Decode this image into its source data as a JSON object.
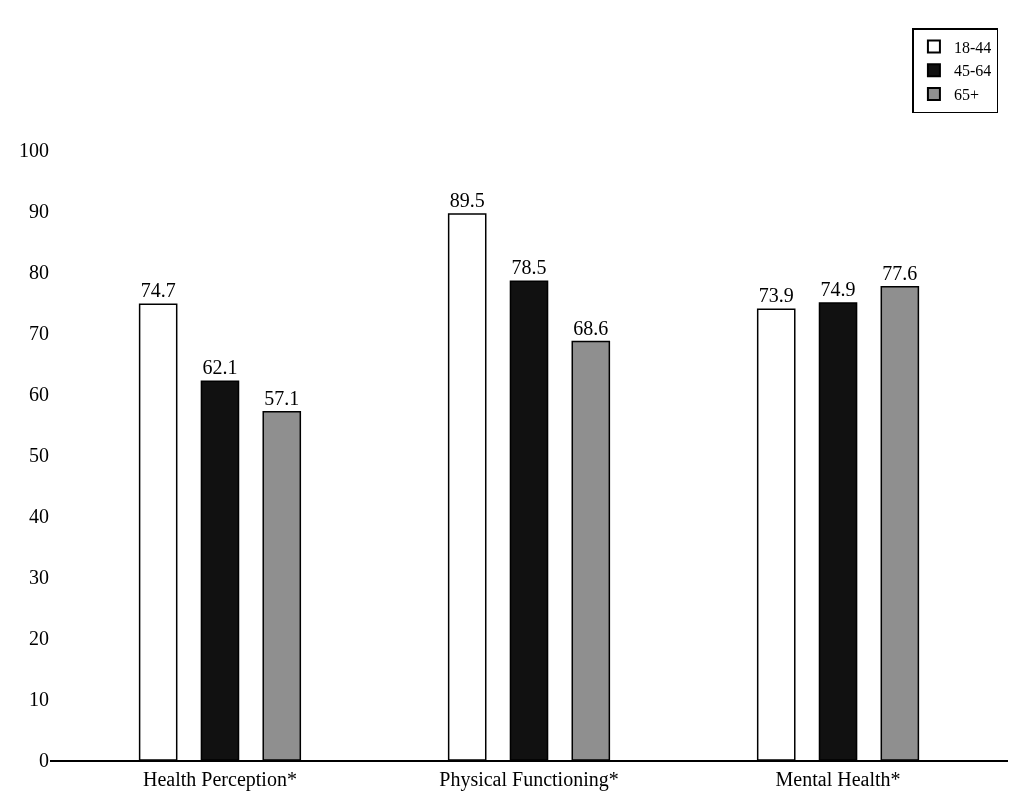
{
  "chart_data": {
    "type": "bar",
    "categories": [
      "Health Perception*",
      "Physical Functioning*",
      "Mental Health*"
    ],
    "series": [
      {
        "name": "18-44",
        "color": "#ffffff",
        "values": [
          74.7,
          89.5,
          73.9
        ]
      },
      {
        "name": "45-64",
        "color": "#111111",
        "values": [
          62.1,
          78.5,
          74.9
        ]
      },
      {
        "name": "65+",
        "color": "#8f8f8f",
        "values": [
          57.1,
          68.6,
          77.6
        ]
      }
    ],
    "ylim": [
      0,
      100
    ],
    "yticks": [
      0,
      10,
      20,
      30,
      40,
      50,
      60,
      70,
      80,
      90,
      100
    ],
    "data_labels": true,
    "legend": "top right"
  }
}
